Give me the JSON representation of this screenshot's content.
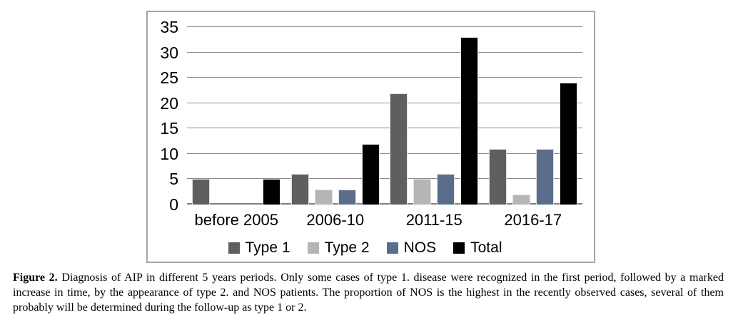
{
  "chart_data": {
    "type": "bar",
    "categories": [
      "before 2005",
      "2006-10",
      "2011-15",
      "2016-17"
    ],
    "series": [
      {
        "name": "Type 1",
        "color": "#5f5f5f",
        "values": [
          5,
          6,
          22,
          11
        ]
      },
      {
        "name": "Type 2",
        "color": "#b5b5b5",
        "values": [
          0,
          3,
          5,
          2
        ]
      },
      {
        "name": "NOS",
        "color": "#5a6e8c",
        "values": [
          0,
          3,
          6,
          11
        ]
      },
      {
        "name": "Total",
        "color": "#000000",
        "values": [
          5,
          12,
          33,
          24
        ]
      }
    ],
    "title": "",
    "xlabel": "",
    "ylabel": "",
    "ylim": [
      0,
      35
    ],
    "yticks": [
      0,
      5,
      10,
      15,
      20,
      25,
      30,
      35
    ],
    "grid": true,
    "legend_position": "bottom"
  },
  "colors": {
    "gridline": "#8c8c8c",
    "chart_border": "#a6a6a6"
  },
  "caption": {
    "label": "Figure 2.",
    "text": " Diagnosis of AIP in different 5 years periods. Only some cases of type 1. disease were recognized in the first period, followed by a marked increase in time, by the appearance of type 2. and NOS patients. The proportion of NOS is the highest in the recently observed cases, several of them probably will be determined during the follow-up as type 1 or 2."
  }
}
